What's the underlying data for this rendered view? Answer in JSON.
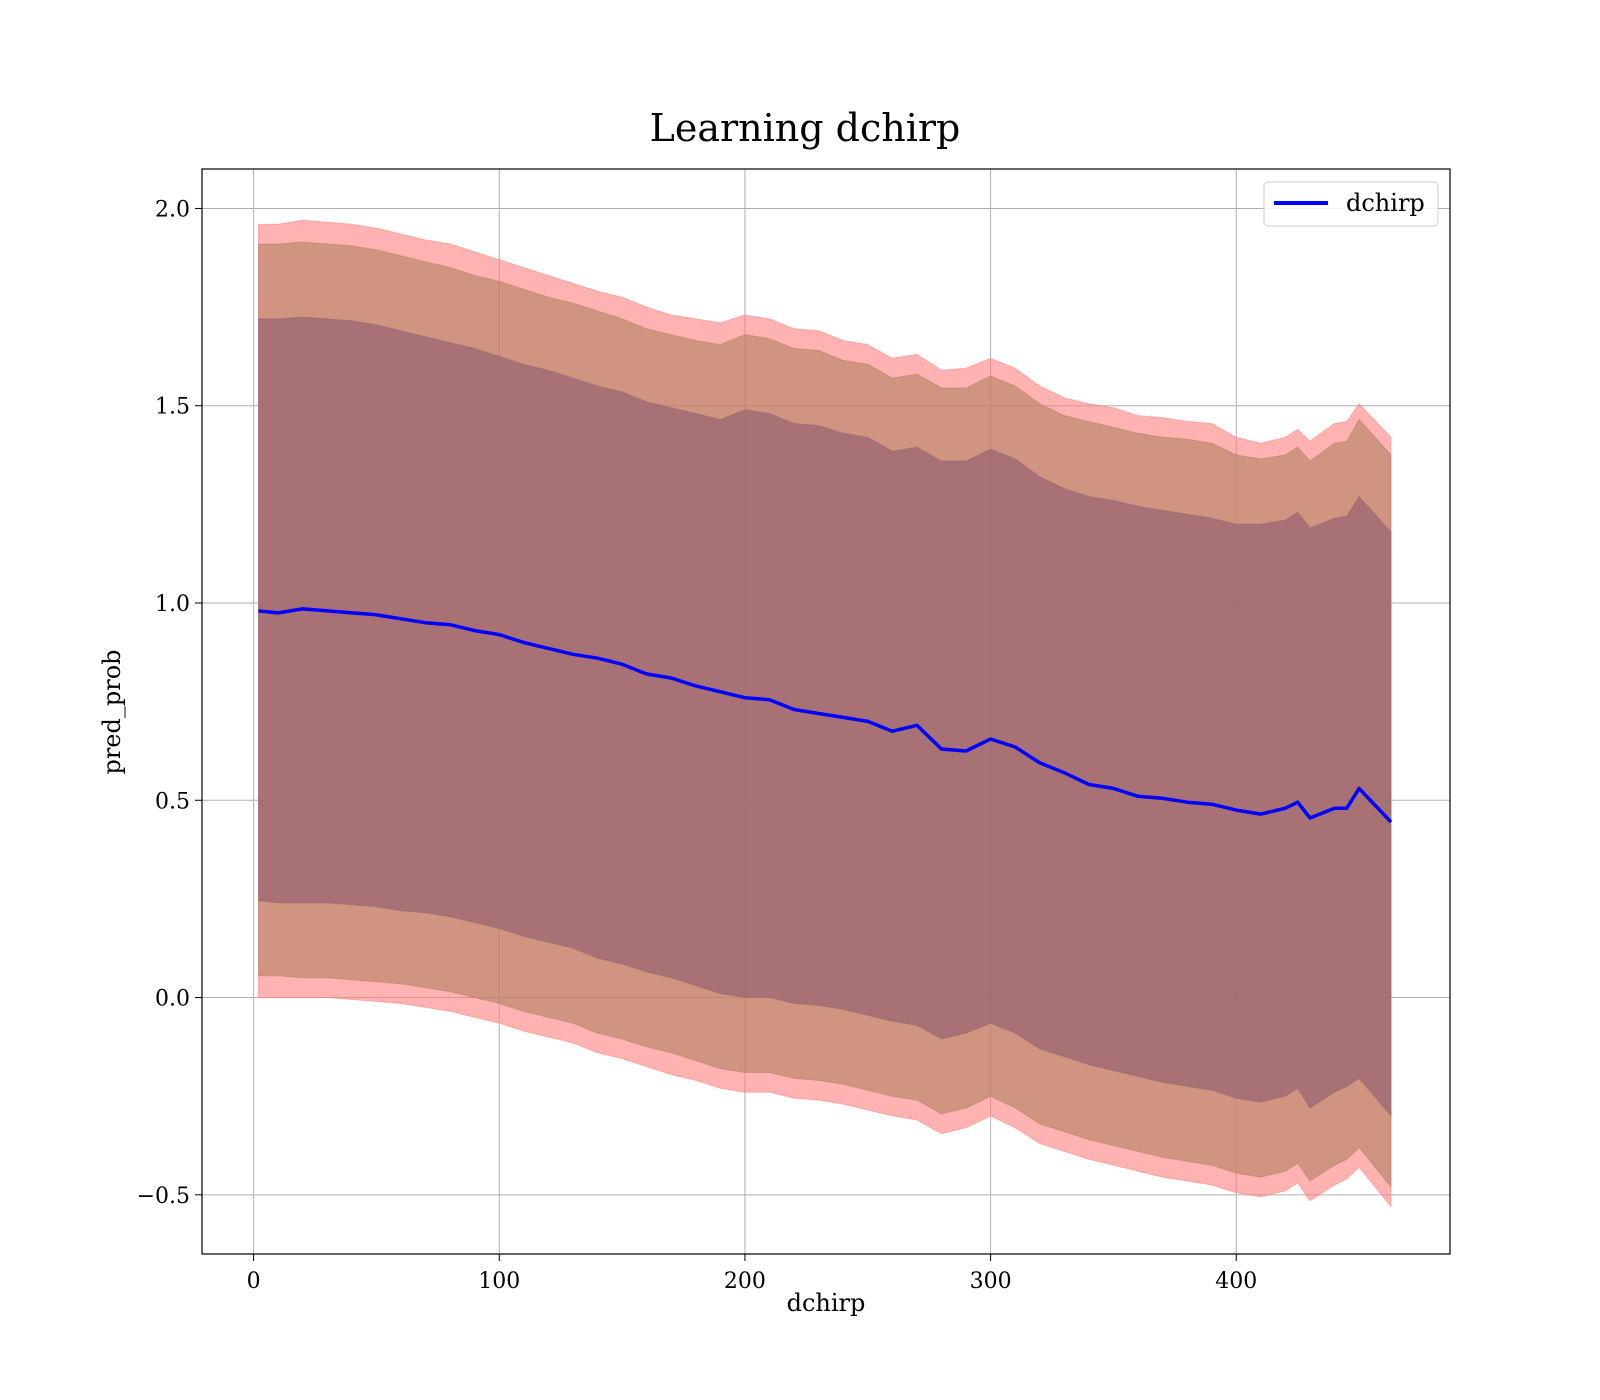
{
  "chart_data": {
    "type": "area",
    "title": "Learning dchirp",
    "xlabel": "dchirp",
    "ylabel": "pred_prob",
    "xlim": [
      -21,
      487
    ],
    "ylim": [
      -0.65,
      2.1
    ],
    "xticks": [
      0,
      100,
      200,
      300,
      400
    ],
    "xtick_labels": [
      "0",
      "100",
      "200",
      "300",
      "400"
    ],
    "yticks": [
      -0.5,
      0.0,
      0.5,
      1.0,
      1.5,
      2.0
    ],
    "ytick_labels": [
      "−0.5",
      "0.0",
      "0.5",
      "1.0",
      "1.5",
      "2.0"
    ],
    "grid": true,
    "legend": {
      "placement": "top-right",
      "entries": [
        "dchirp"
      ]
    },
    "colors": {
      "line": "#0000ff",
      "band_outer": "#ff7f7f",
      "band_mid": "#b08060",
      "band_inner": "#9a6672"
    },
    "x": [
      2,
      10,
      20,
      30,
      40,
      50,
      60,
      70,
      80,
      90,
      100,
      110,
      120,
      130,
      140,
      150,
      160,
      170,
      180,
      190,
      200,
      210,
      220,
      230,
      240,
      250,
      260,
      270,
      280,
      290,
      300,
      310,
      320,
      330,
      340,
      350,
      360,
      370,
      380,
      390,
      400,
      410,
      420,
      425,
      430,
      440,
      445,
      450,
      463
    ],
    "series": [
      {
        "name": "dchirp",
        "values": [
          0.98,
          0.975,
          0.985,
          0.98,
          0.975,
          0.97,
          0.96,
          0.95,
          0.945,
          0.93,
          0.92,
          0.9,
          0.885,
          0.87,
          0.86,
          0.845,
          0.82,
          0.81,
          0.79,
          0.775,
          0.76,
          0.755,
          0.73,
          0.72,
          0.71,
          0.7,
          0.675,
          0.69,
          0.63,
          0.625,
          0.655,
          0.635,
          0.595,
          0.57,
          0.54,
          0.53,
          0.51,
          0.505,
          0.495,
          0.49,
          0.475,
          0.465,
          0.48,
          0.495,
          0.455,
          0.48,
          0.48,
          0.53,
          0.445
        ]
      }
    ],
    "bands": [
      {
        "upper": [
          1.96,
          1.96,
          1.97,
          1.965,
          1.96,
          1.95,
          1.935,
          1.92,
          1.91,
          1.89,
          1.87,
          1.85,
          1.83,
          1.81,
          1.79,
          1.775,
          1.75,
          1.73,
          1.72,
          1.71,
          1.73,
          1.72,
          1.695,
          1.69,
          1.665,
          1.655,
          1.62,
          1.63,
          1.59,
          1.595,
          1.62,
          1.595,
          1.55,
          1.52,
          1.505,
          1.495,
          1.475,
          1.47,
          1.46,
          1.455,
          1.42,
          1.405,
          1.42,
          1.44,
          1.41,
          1.455,
          1.46,
          1.505,
          1.42
        ],
        "lower": [
          0.0,
          0.0,
          0.0,
          0.0,
          -0.005,
          -0.01,
          -0.015,
          -0.025,
          -0.035,
          -0.05,
          -0.065,
          -0.085,
          -0.1,
          -0.115,
          -0.14,
          -0.155,
          -0.175,
          -0.195,
          -0.21,
          -0.23,
          -0.24,
          -0.24,
          -0.255,
          -0.26,
          -0.27,
          -0.285,
          -0.3,
          -0.31,
          -0.345,
          -0.33,
          -0.3,
          -0.33,
          -0.37,
          -0.39,
          -0.41,
          -0.425,
          -0.44,
          -0.455,
          -0.465,
          -0.475,
          -0.495,
          -0.505,
          -0.49,
          -0.47,
          -0.515,
          -0.475,
          -0.46,
          -0.43,
          -0.53
        ]
      },
      {
        "upper": [
          1.91,
          1.91,
          1.915,
          1.91,
          1.905,
          1.895,
          1.88,
          1.865,
          1.85,
          1.83,
          1.815,
          1.795,
          1.775,
          1.76,
          1.74,
          1.72,
          1.695,
          1.68,
          1.665,
          1.655,
          1.68,
          1.67,
          1.645,
          1.64,
          1.615,
          1.605,
          1.57,
          1.58,
          1.545,
          1.545,
          1.575,
          1.55,
          1.505,
          1.475,
          1.46,
          1.445,
          1.43,
          1.42,
          1.415,
          1.405,
          1.375,
          1.365,
          1.375,
          1.395,
          1.36,
          1.405,
          1.41,
          1.465,
          1.375
        ],
        "lower": [
          0.055,
          0.055,
          0.05,
          0.05,
          0.045,
          0.04,
          0.035,
          0.025,
          0.015,
          0.0,
          -0.015,
          -0.035,
          -0.05,
          -0.065,
          -0.09,
          -0.105,
          -0.125,
          -0.14,
          -0.16,
          -0.18,
          -0.19,
          -0.19,
          -0.205,
          -0.21,
          -0.22,
          -0.235,
          -0.25,
          -0.26,
          -0.295,
          -0.28,
          -0.25,
          -0.28,
          -0.32,
          -0.34,
          -0.36,
          -0.375,
          -0.39,
          -0.405,
          -0.415,
          -0.425,
          -0.445,
          -0.455,
          -0.44,
          -0.42,
          -0.465,
          -0.425,
          -0.41,
          -0.38,
          -0.48
        ]
      },
      {
        "upper": [
          1.72,
          1.72,
          1.725,
          1.72,
          1.715,
          1.705,
          1.69,
          1.675,
          1.66,
          1.645,
          1.625,
          1.605,
          1.59,
          1.57,
          1.55,
          1.535,
          1.51,
          1.495,
          1.48,
          1.465,
          1.49,
          1.48,
          1.455,
          1.45,
          1.43,
          1.42,
          1.385,
          1.395,
          1.36,
          1.36,
          1.39,
          1.365,
          1.32,
          1.29,
          1.27,
          1.26,
          1.245,
          1.235,
          1.225,
          1.215,
          1.2,
          1.2,
          1.21,
          1.23,
          1.19,
          1.215,
          1.22,
          1.27,
          1.18
        ],
        "lower": [
          0.245,
          0.24,
          0.24,
          0.24,
          0.235,
          0.23,
          0.22,
          0.215,
          0.205,
          0.19,
          0.175,
          0.155,
          0.14,
          0.125,
          0.1,
          0.085,
          0.065,
          0.05,
          0.03,
          0.01,
          0.0,
          0.0,
          -0.015,
          -0.02,
          -0.03,
          -0.045,
          -0.06,
          -0.07,
          -0.105,
          -0.09,
          -0.065,
          -0.09,
          -0.13,
          -0.15,
          -0.17,
          -0.185,
          -0.2,
          -0.215,
          -0.225,
          -0.235,
          -0.255,
          -0.265,
          -0.25,
          -0.23,
          -0.28,
          -0.24,
          -0.225,
          -0.205,
          -0.3
        ]
      }
    ]
  }
}
